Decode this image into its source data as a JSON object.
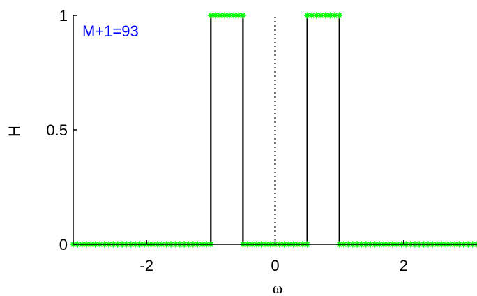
{
  "chart_data": {
    "type": "line",
    "xlabel": "ω",
    "ylabel": "H",
    "xlim": [
      -3.1416,
      3.1416
    ],
    "ylim": [
      0,
      1
    ],
    "xticks": [
      {
        "value": -2,
        "label": "-2"
      },
      {
        "value": 0,
        "label": "0"
      },
      {
        "value": 2,
        "label": "2"
      }
    ],
    "yticks": [
      {
        "value": 0,
        "label": "0"
      },
      {
        "value": 0.5,
        "label": "0.5"
      },
      {
        "value": 1,
        "label": "1"
      }
    ],
    "grid": false,
    "annotation": "M+1=93",
    "series": [
      {
        "style": "solid",
        "color": "#000000",
        "x": [
          -3.1416,
          -1.0,
          -1.0,
          -0.5,
          -0.5,
          0.5,
          0.5,
          1.0,
          1.0,
          3.1416
        ],
        "y": [
          0,
          0,
          1,
          1,
          0,
          0,
          1,
          1,
          0,
          0
        ]
      },
      {
        "style": "dotted",
        "color": "#000000",
        "x": [
          0,
          0
        ],
        "y": [
          0,
          1
        ]
      },
      {
        "style": "markers",
        "marker": "asterisk",
        "color": "#00ff00",
        "segments": [
          {
            "x_start": -3.1416,
            "x_end": -1.0,
            "y": 0,
            "count": 32
          },
          {
            "x_start": -1.0,
            "x_end": -0.5,
            "y": 1,
            "count": 8
          },
          {
            "x_start": -0.5,
            "x_end": 0.5,
            "y": 0,
            "count": 15
          },
          {
            "x_start": 0.5,
            "x_end": 1.0,
            "y": 1,
            "count": 8
          },
          {
            "x_start": 1.0,
            "x_end": 3.1416,
            "y": 0,
            "count": 32
          }
        ]
      }
    ]
  }
}
